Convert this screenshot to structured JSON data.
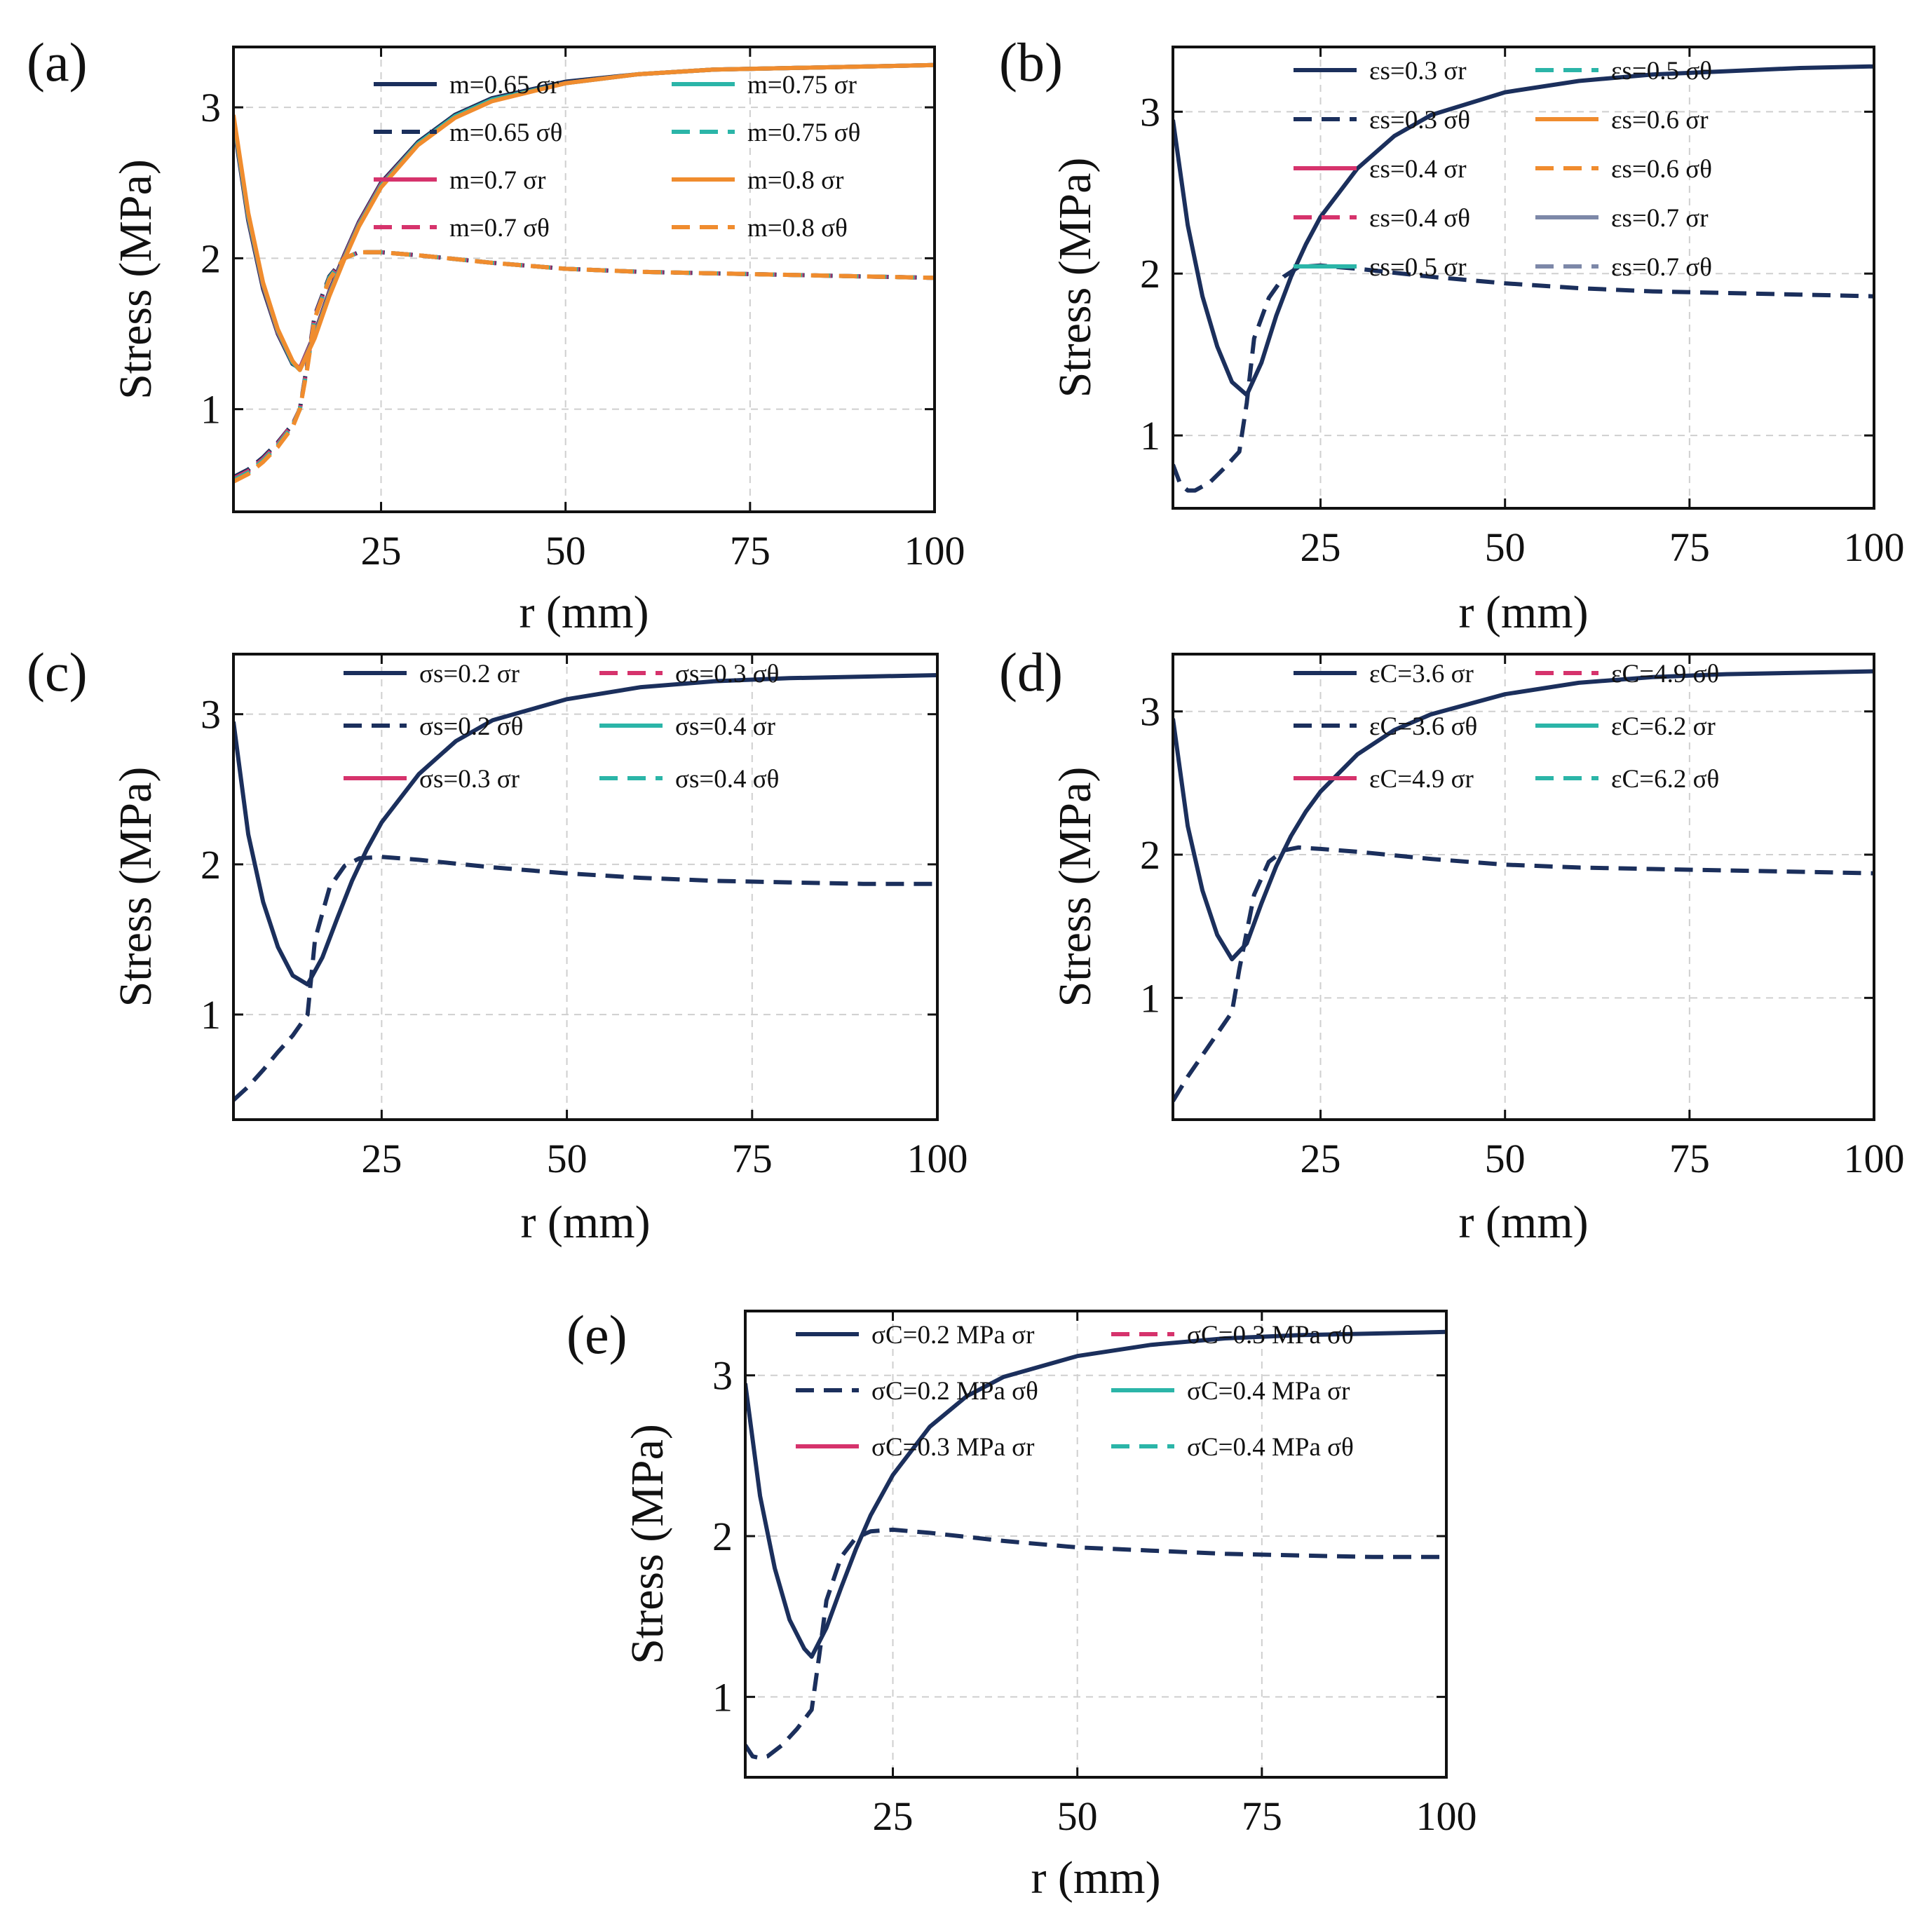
{
  "chart_data": [
    {
      "panel": "(a)",
      "type": "line",
      "xlabel": "r (mm)",
      "ylabel": "Stress (MPa)",
      "xlim": [
        5,
        100
      ],
      "ylim": [
        0.32,
        3.4
      ],
      "xticks": [
        25,
        50,
        75,
        100
      ],
      "yticks": [
        1,
        2,
        3
      ],
      "grid": true,
      "legend_position": "top-right",
      "legend_columns": 2,
      "series": [
        {
          "name": "m=0.65 σr",
          "color": "#1b2f5c",
          "dash": "solid",
          "x": [
            5,
            7,
            9,
            11,
            13,
            14,
            16,
            18,
            20,
            22,
            25,
            30,
            35,
            40,
            50,
            60,
            70,
            80,
            90,
            100
          ],
          "y": [
            2.9,
            2.25,
            1.8,
            1.5,
            1.3,
            1.27,
            1.5,
            1.78,
            2.02,
            2.24,
            2.5,
            2.77,
            2.95,
            3.06,
            3.17,
            3.22,
            3.25,
            3.26,
            3.27,
            3.28
          ]
        },
        {
          "name": "m=0.65 σθ",
          "color": "#1b2f5c",
          "dash": "dashed",
          "x": [
            5,
            7,
            9,
            11,
            13,
            14,
            15,
            16,
            18,
            20,
            22,
            25,
            30,
            40,
            50,
            60,
            70,
            80,
            90,
            100
          ],
          "y": [
            0.55,
            0.6,
            0.68,
            0.78,
            0.9,
            1.0,
            1.3,
            1.62,
            1.88,
            2.0,
            2.04,
            2.04,
            2.02,
            1.97,
            1.93,
            1.91,
            1.9,
            1.89,
            1.88,
            1.87
          ]
        },
        {
          "name": "m=0.7 σr",
          "color": "#d6336c",
          "dash": "solid",
          "x": [
            5,
            7,
            9,
            11,
            13,
            14,
            16,
            18,
            20,
            22,
            25,
            30,
            35,
            40,
            50,
            60,
            70,
            80,
            90,
            100
          ],
          "y": [
            2.92,
            2.27,
            1.82,
            1.51,
            1.31,
            1.27,
            1.49,
            1.77,
            2.01,
            2.23,
            2.49,
            2.76,
            2.94,
            3.05,
            3.16,
            3.22,
            3.25,
            3.26,
            3.27,
            3.28
          ]
        },
        {
          "name": "m=0.7 σθ",
          "color": "#d6336c",
          "dash": "dashed",
          "x": [
            5,
            7,
            9,
            11,
            13,
            14,
            15,
            16,
            18,
            20,
            22,
            25,
            30,
            40,
            50,
            60,
            70,
            80,
            90,
            100
          ],
          "y": [
            0.54,
            0.59,
            0.67,
            0.77,
            0.9,
            1.0,
            1.29,
            1.61,
            1.87,
            2.0,
            2.04,
            2.04,
            2.02,
            1.97,
            1.93,
            1.91,
            1.9,
            1.89,
            1.88,
            1.87
          ]
        },
        {
          "name": "m=0.75 σr",
          "color": "#2bb5a8",
          "dash": "solid",
          "x": [
            5,
            7,
            9,
            11,
            13,
            14,
            16,
            18,
            20,
            22,
            25,
            30,
            35,
            40,
            50,
            60,
            70,
            80,
            90,
            100
          ],
          "y": [
            2.93,
            2.28,
            1.83,
            1.52,
            1.31,
            1.26,
            1.48,
            1.76,
            2.0,
            2.22,
            2.48,
            2.76,
            2.94,
            3.05,
            3.16,
            3.22,
            3.25,
            3.26,
            3.27,
            3.28
          ]
        },
        {
          "name": "m=0.75 σθ",
          "color": "#2bb5a8",
          "dash": "dashed",
          "x": [
            5,
            7,
            9,
            11,
            13,
            14,
            15,
            16,
            18,
            20,
            22,
            25,
            30,
            40,
            50,
            60,
            70,
            80,
            90,
            100
          ],
          "y": [
            0.53,
            0.58,
            0.66,
            0.76,
            0.89,
            1.0,
            1.28,
            1.6,
            1.87,
            2.0,
            2.04,
            2.04,
            2.02,
            1.97,
            1.93,
            1.91,
            1.9,
            1.89,
            1.88,
            1.87
          ]
        },
        {
          "name": "m=0.8 σr",
          "color": "#f08c2e",
          "dash": "solid",
          "x": [
            5,
            7,
            9,
            11,
            13,
            14,
            16,
            18,
            20,
            22,
            25,
            30,
            35,
            40,
            50,
            60,
            70,
            80,
            90,
            100
          ],
          "y": [
            2.95,
            2.3,
            1.84,
            1.53,
            1.32,
            1.26,
            1.47,
            1.75,
            1.99,
            2.21,
            2.47,
            2.75,
            2.93,
            3.04,
            3.16,
            3.22,
            3.25,
            3.26,
            3.27,
            3.28
          ]
        },
        {
          "name": "m=0.8 σθ",
          "color": "#f08c2e",
          "dash": "dashed",
          "x": [
            5,
            7,
            9,
            11,
            13,
            14,
            15,
            16,
            18,
            20,
            22,
            25,
            30,
            40,
            50,
            60,
            70,
            80,
            90,
            100
          ],
          "y": [
            0.52,
            0.57,
            0.65,
            0.75,
            0.88,
            1.0,
            1.27,
            1.6,
            1.86,
            2.0,
            2.04,
            2.04,
            2.02,
            1.97,
            1.93,
            1.91,
            1.9,
            1.89,
            1.88,
            1.87
          ]
        }
      ]
    },
    {
      "panel": "(b)",
      "type": "line",
      "xlabel": "r (mm)",
      "ylabel": "Stress (MPa)",
      "xlim": [
        5,
        100
      ],
      "ylim": [
        0.55,
        3.4
      ],
      "xticks": [
        25,
        50,
        75,
        100
      ],
      "yticks": [
        1,
        2,
        3
      ],
      "grid": true,
      "legend_position": "top-right",
      "legend_columns": 2,
      "series": [
        {
          "name": "εs=0.3 σr",
          "color": "#1b2f5c",
          "dash": "solid",
          "x": [
            5,
            7,
            9,
            11,
            13,
            15,
            17,
            19,
            21,
            23,
            25,
            30,
            35,
            40,
            50,
            60,
            70,
            80,
            90,
            100
          ],
          "y": [
            2.95,
            2.3,
            1.86,
            1.55,
            1.33,
            1.25,
            1.45,
            1.74,
            1.98,
            2.18,
            2.35,
            2.65,
            2.85,
            2.98,
            3.12,
            3.19,
            3.23,
            3.25,
            3.27,
            3.28
          ]
        },
        {
          "name": "εs=0.3 σθ",
          "color": "#1b2f5c",
          "dash": "dashed",
          "x": [
            5,
            6,
            7,
            8,
            10,
            12,
            14,
            15,
            16,
            18,
            20,
            22,
            25,
            30,
            40,
            50,
            60,
            70,
            80,
            90,
            100
          ],
          "y": [
            0.82,
            0.7,
            0.66,
            0.66,
            0.71,
            0.8,
            0.9,
            1.2,
            1.6,
            1.85,
            1.98,
            2.04,
            2.05,
            2.03,
            1.98,
            1.94,
            1.91,
            1.89,
            1.88,
            1.87,
            1.86
          ]
        },
        {
          "name": "εs=0.4 σr",
          "color": "#d6336c",
          "dash": "solid",
          "x": [],
          "y": []
        },
        {
          "name": "εs=0.4 σθ",
          "color": "#d6336c",
          "dash": "dashed",
          "x": [],
          "y": []
        },
        {
          "name": "εs=0.5 σr",
          "color": "#2bb5a8",
          "dash": "solid",
          "x": [],
          "y": []
        },
        {
          "name": "εs=0.5 σθ",
          "color": "#2bb5a8",
          "dash": "dashed",
          "x": [],
          "y": []
        },
        {
          "name": "εs=0.6 σr",
          "color": "#f08c2e",
          "dash": "solid",
          "x": [],
          "y": []
        },
        {
          "name": "εs=0.6 σθ",
          "color": "#f08c2e",
          "dash": "dashed",
          "x": [],
          "y": []
        },
        {
          "name": "εs=0.7 σr",
          "color": "#7d88a8",
          "dash": "solid",
          "x": [],
          "y": []
        },
        {
          "name": "εs=0.7 σθ",
          "color": "#7d88a8",
          "dash": "dashed",
          "x": [],
          "y": []
        }
      ]
    },
    {
      "panel": "(c)",
      "type": "line",
      "xlabel": "r (mm)",
      "ylabel": "Stress (MPa)",
      "xlim": [
        5,
        100
      ],
      "ylim": [
        0.3,
        3.4
      ],
      "xticks": [
        25,
        50,
        75,
        100
      ],
      "yticks": [
        1,
        2,
        3
      ],
      "grid": true,
      "legend_position": "top-right",
      "legend_columns": 2,
      "series": [
        {
          "name": "σs=0.2 σr",
          "color": "#1b2f5c",
          "dash": "solid",
          "x": [
            5,
            7,
            9,
            11,
            13,
            15,
            17,
            19,
            21,
            23,
            25,
            30,
            35,
            40,
            50,
            60,
            70,
            80,
            90,
            100
          ],
          "y": [
            2.95,
            2.2,
            1.75,
            1.45,
            1.26,
            1.2,
            1.38,
            1.64,
            1.89,
            2.1,
            2.28,
            2.6,
            2.82,
            2.96,
            3.1,
            3.18,
            3.22,
            3.24,
            3.25,
            3.26
          ]
        },
        {
          "name": "σs=0.2 σθ",
          "color": "#1b2f5c",
          "dash": "dashed",
          "x": [
            5,
            7,
            9,
            11,
            13,
            15,
            16,
            18,
            20,
            22,
            25,
            30,
            40,
            50,
            60,
            70,
            80,
            90,
            100
          ],
          "y": [
            0.43,
            0.52,
            0.63,
            0.75,
            0.86,
            1.0,
            1.5,
            1.85,
            1.99,
            2.04,
            2.05,
            2.03,
            1.98,
            1.94,
            1.91,
            1.89,
            1.88,
            1.87,
            1.87
          ]
        },
        {
          "name": "σs=0.3 σr",
          "color": "#d6336c",
          "dash": "solid",
          "x": [],
          "y": []
        },
        {
          "name": "σs=0.3 σθ",
          "color": "#d6336c",
          "dash": "dashed",
          "x": [],
          "y": []
        },
        {
          "name": "σs=0.4 σr",
          "color": "#2bb5a8",
          "dash": "solid",
          "x": [],
          "y": []
        },
        {
          "name": "σs=0.4 σθ",
          "color": "#2bb5a8",
          "dash": "dashed",
          "x": [],
          "y": []
        }
      ]
    },
    {
      "panel": "(d)",
      "type": "line",
      "xlabel": "r (mm)",
      "ylabel": "Stress (MPa)",
      "xlim": [
        5,
        100
      ],
      "ylim": [
        0.15,
        3.4
      ],
      "xticks": [
        25,
        50,
        75,
        100
      ],
      "yticks": [
        1,
        2,
        3
      ],
      "grid": true,
      "legend_position": "top-right",
      "legend_columns": 2,
      "series": [
        {
          "name": "εC=3.6 σr",
          "color": "#1b2f5c",
          "dash": "solid",
          "x": [
            5,
            7,
            9,
            11,
            13,
            15,
            17,
            19,
            21,
            23,
            25,
            30,
            35,
            40,
            50,
            60,
            70,
            80,
            90,
            100
          ],
          "y": [
            2.95,
            2.2,
            1.75,
            1.44,
            1.27,
            1.38,
            1.66,
            1.92,
            2.13,
            2.3,
            2.44,
            2.7,
            2.87,
            2.98,
            3.12,
            3.2,
            3.24,
            3.26,
            3.27,
            3.28
          ]
        },
        {
          "name": "εC=3.6 σθ",
          "color": "#1b2f5c",
          "dash": "dashed",
          "x": [
            5,
            7,
            9,
            11,
            13,
            14,
            16,
            18,
            20,
            22,
            25,
            30,
            40,
            50,
            60,
            70,
            80,
            90,
            100
          ],
          "y": [
            0.28,
            0.45,
            0.6,
            0.75,
            0.9,
            1.2,
            1.72,
            1.95,
            2.03,
            2.05,
            2.04,
            2.02,
            1.97,
            1.93,
            1.91,
            1.9,
            1.89,
            1.88,
            1.87
          ]
        },
        {
          "name": "εC=4.9 σr",
          "color": "#d6336c",
          "dash": "solid",
          "x": [],
          "y": []
        },
        {
          "name": "εC=4.9 σθ",
          "color": "#d6336c",
          "dash": "dashed",
          "x": [],
          "y": []
        },
        {
          "name": "εC=6.2 σr",
          "color": "#2bb5a8",
          "dash": "solid",
          "x": [],
          "y": []
        },
        {
          "name": "εC=6.2 σθ",
          "color": "#2bb5a8",
          "dash": "dashed",
          "x": [],
          "y": []
        }
      ]
    },
    {
      "panel": "(e)",
      "type": "line",
      "xlabel": "r (mm)",
      "ylabel": "Stress (MPa)",
      "xlim": [
        5,
        100
      ],
      "ylim": [
        0.5,
        3.4
      ],
      "xticks": [
        25,
        50,
        75,
        100
      ],
      "yticks": [
        1,
        2,
        3
      ],
      "grid": true,
      "legend_position": "top-right",
      "legend_columns": 2,
      "series": [
        {
          "name": "σC=0.2 MPa σr",
          "color": "#1b2f5c",
          "dash": "solid",
          "x": [
            5,
            7,
            9,
            11,
            13,
            14,
            16,
            18,
            20,
            22,
            25,
            30,
            35,
            40,
            50,
            60,
            70,
            80,
            90,
            100
          ],
          "y": [
            2.95,
            2.25,
            1.8,
            1.48,
            1.3,
            1.25,
            1.43,
            1.68,
            1.92,
            2.13,
            2.38,
            2.68,
            2.87,
            2.99,
            3.12,
            3.19,
            3.23,
            3.25,
            3.26,
            3.27
          ]
        },
        {
          "name": "σC=0.2 MPa σθ",
          "color": "#1b2f5c",
          "dash": "dashed",
          "x": [
            5,
            6,
            7,
            8,
            10,
            12,
            14,
            15,
            16,
            18,
            20,
            22,
            25,
            30,
            40,
            50,
            60,
            70,
            80,
            90,
            100
          ],
          "y": [
            0.7,
            0.63,
            0.62,
            0.63,
            0.7,
            0.8,
            0.92,
            1.25,
            1.6,
            1.87,
            1.99,
            2.03,
            2.04,
            2.02,
            1.97,
            1.93,
            1.91,
            1.89,
            1.88,
            1.87,
            1.87
          ]
        },
        {
          "name": "σC=0.3 MPa σr",
          "color": "#d6336c",
          "dash": "solid",
          "x": [],
          "y": []
        },
        {
          "name": "σC=0.3 MPa σθ",
          "color": "#d6336c",
          "dash": "dashed",
          "x": [],
          "y": []
        },
        {
          "name": "σC=0.4 MPa σr",
          "color": "#2bb5a8",
          "dash": "solid",
          "x": [],
          "y": []
        },
        {
          "name": "σC=0.4 MPa σθ",
          "color": "#2bb5a8",
          "dash": "dashed",
          "x": [],
          "y": []
        }
      ]
    }
  ]
}
